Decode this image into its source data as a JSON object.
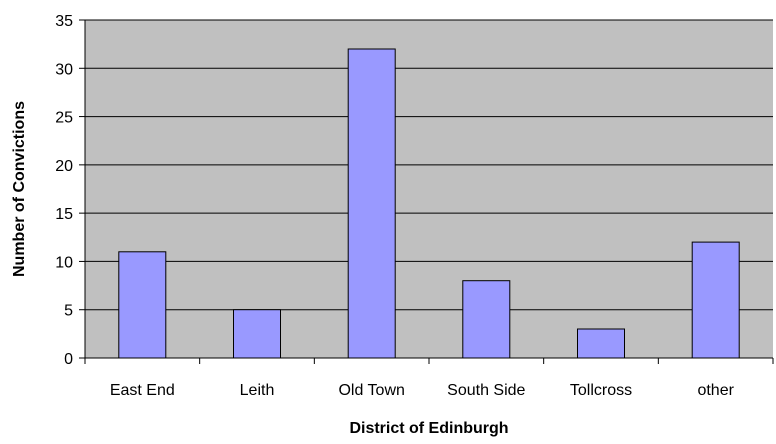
{
  "chart_data": {
    "type": "bar",
    "title": "",
    "xlabel": "District of Edinburgh",
    "ylabel": "Number of Convictions",
    "categories": [
      "East End",
      "Leith",
      "Old Town",
      "South Side",
      "Tollcross",
      "other"
    ],
    "values": [
      11,
      5,
      32,
      8,
      3,
      12
    ],
    "ylim": [
      0,
      35
    ],
    "yticks": [
      "0",
      "5",
      "10",
      "15",
      "20",
      "25",
      "30",
      "35"
    ],
    "grid": true,
    "legend": "none",
    "colors": {
      "bar_fill": "#9999ff",
      "plot_background": "#c0c0c0",
      "bar_stroke": "#000000",
      "gridline": "#000000"
    }
  }
}
